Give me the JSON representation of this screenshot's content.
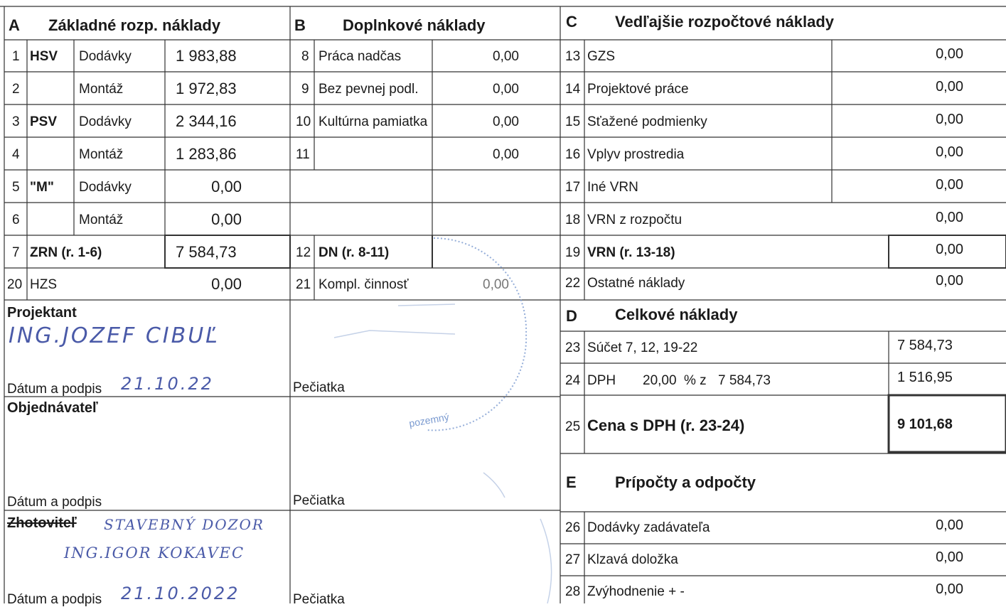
{
  "sections": {
    "A": {
      "letter": "A",
      "title": "Základné rozp. náklady"
    },
    "B": {
      "letter": "B",
      "title": "Doplnkové náklady"
    },
    "C": {
      "letter": "C",
      "title": "Vedľajšie rozpočtové náklady"
    },
    "D": {
      "letter": "D",
      "title": "Celkové náklady"
    },
    "E": {
      "letter": "E",
      "title": "Prípočty a odpočty"
    }
  },
  "a_rows": [
    {
      "num": "1",
      "group": "HSV",
      "type": "Dodávky",
      "value": "1 983,88"
    },
    {
      "num": "2",
      "group": "",
      "type": "Montáž",
      "value": "1 972,83"
    },
    {
      "num": "3",
      "group": "PSV",
      "type": "Dodávky",
      "value": "2 344,16"
    },
    {
      "num": "4",
      "group": "",
      "type": "Montáž",
      "value": "1 283,86"
    },
    {
      "num": "5",
      "group": "\"M\"",
      "type": "Dodávky",
      "value": "0,00"
    },
    {
      "num": "6",
      "group": "",
      "type": "Montáž",
      "value": "0,00"
    }
  ],
  "a_total": {
    "num": "7",
    "label": "ZRN (r. 1-6)",
    "value": "7 584,73"
  },
  "a_hzs": {
    "num": "20",
    "label": "HZS",
    "value": "0,00"
  },
  "b_rows": [
    {
      "num": "8",
      "label": "Práca nadčas",
      "value": "0,00"
    },
    {
      "num": "9",
      "label": "Bez pevnej podl.",
      "value": "0,00"
    },
    {
      "num": "10",
      "label": "Kultúrna pamiatka",
      "value": "0,00"
    },
    {
      "num": "11",
      "label": "",
      "value": "0,00"
    }
  ],
  "b_total": {
    "num": "12",
    "label": "DN (r. 8-11)"
  },
  "b_kompl": {
    "num": "21",
    "label": "Kompl. činnosť",
    "value": "0,00"
  },
  "c_rows": [
    {
      "num": "13",
      "label": "GZS",
      "value": "0,00"
    },
    {
      "num": "14",
      "label": "Projektové práce",
      "value": "0,00"
    },
    {
      "num": "15",
      "label": "Sťažené podmienky",
      "value": "0,00"
    },
    {
      "num": "16",
      "label": "Vplyv prostredia",
      "value": "0,00"
    },
    {
      "num": "17",
      "label": "Iné VRN",
      "value": "0,00"
    },
    {
      "num": "18",
      "label": "VRN z rozpočtu",
      "value": "0,00"
    }
  ],
  "c_total": {
    "num": "19",
    "label": "VRN (r. 13-18)",
    "value": "0,00"
  },
  "c_other": {
    "num": "22",
    "label": "Ostatné náklady",
    "value": "0,00"
  },
  "d_rows": {
    "sum": {
      "num": "23",
      "label": "Súčet 7, 12, 19-22",
      "value": "7 584,73"
    },
    "vat": {
      "num": "24",
      "label": "DPH",
      "rate": "20,00",
      "rate_suffix": "% z",
      "base": "7 584,73",
      "value": "1 516,95"
    },
    "total": {
      "num": "25",
      "label": "Cena s DPH (r. 23-24)",
      "value": "9 101,68"
    }
  },
  "e_rows": [
    {
      "num": "26",
      "label": "Dodávky zadávateľa",
      "value": "0,00"
    },
    {
      "num": "27",
      "label": "Klzavá doložka",
      "value": "0,00"
    },
    {
      "num": "28",
      "label": "Zvýhodnenie + -",
      "value": "0,00"
    }
  ],
  "parties": {
    "projektant": {
      "title": "Projektant",
      "name": "ING.JOZEF CIBUĽ",
      "date_label": "Dátum a podpis",
      "date": "21.10.22",
      "stamp_label": "Pečiatka"
    },
    "objednavatel": {
      "title": "Objednávateľ",
      "date_label": "Dátum a podpis",
      "stamp_label": "Pečiatka"
    },
    "zhotovitel": {
      "title": "Zhotoviteľ",
      "note": "STAVEBNÝ DOZOR",
      "name": "ING.IGOR KOKAVEC",
      "date_label": "Dátum a podpis",
      "date": "21.10.2022",
      "stamp_label": "Pečiatka"
    }
  },
  "stamp": {
    "text": "pozemný"
  },
  "colors": {
    "ink": "#1a1a1a",
    "handwriting": "#4a5aa8",
    "stamp": "#7a9ad0"
  }
}
